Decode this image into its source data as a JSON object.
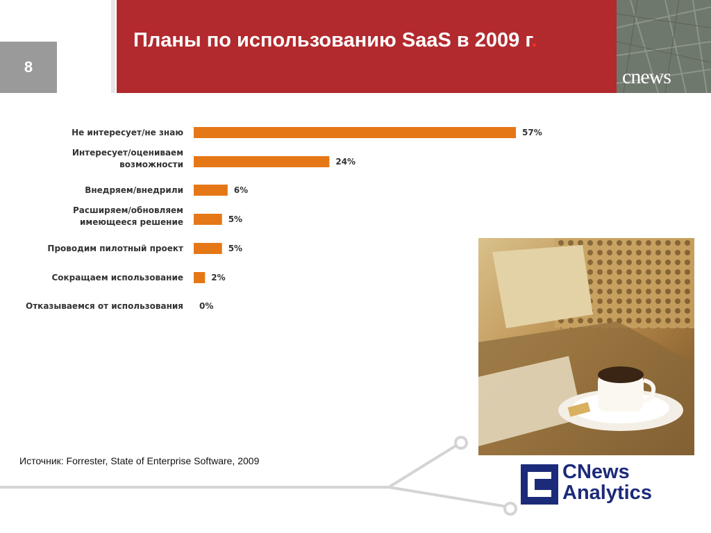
{
  "slide": {
    "number": "8"
  },
  "header": {
    "title": "Планы по использованию SaaS в 2009 г",
    "title_dot": "."
  },
  "brand": {
    "small_logo": "cnews",
    "logo_line1": "CNews",
    "logo_line2": "Analytics"
  },
  "colors": {
    "header_red": "#b22a2e",
    "bar_orange": "#e57717",
    "slide_num_gray": "#9a9a9a",
    "logo_blue": "#1c2a7a"
  },
  "chart_data": {
    "type": "bar",
    "orientation": "horizontal",
    "categories": [
      [
        "Не интересует/не знаю"
      ],
      [
        "Интересует/оцениваем",
        "возможности"
      ],
      [
        "Внедряем/внедрили"
      ],
      [
        "Расширяем/обновляем",
        "имеющееся решение"
      ],
      [
        "Проводим пилотный проект"
      ],
      [
        "Сокращаем использование"
      ],
      [
        "Отказываемся от использования"
      ]
    ],
    "values": [
      57,
      24,
      6,
      5,
      5,
      2,
      0
    ],
    "value_labels": [
      "57%",
      "24%",
      "6%",
      "5%",
      "5%",
      "2%",
      "0%"
    ],
    "xlim": [
      0,
      100
    ],
    "grid": false,
    "legend": "none"
  },
  "source": {
    "text": "Источник: Forrester, State of Enterprise Software, 2009"
  },
  "photo": {
    "description_icon": "coffee-cup-photo"
  }
}
